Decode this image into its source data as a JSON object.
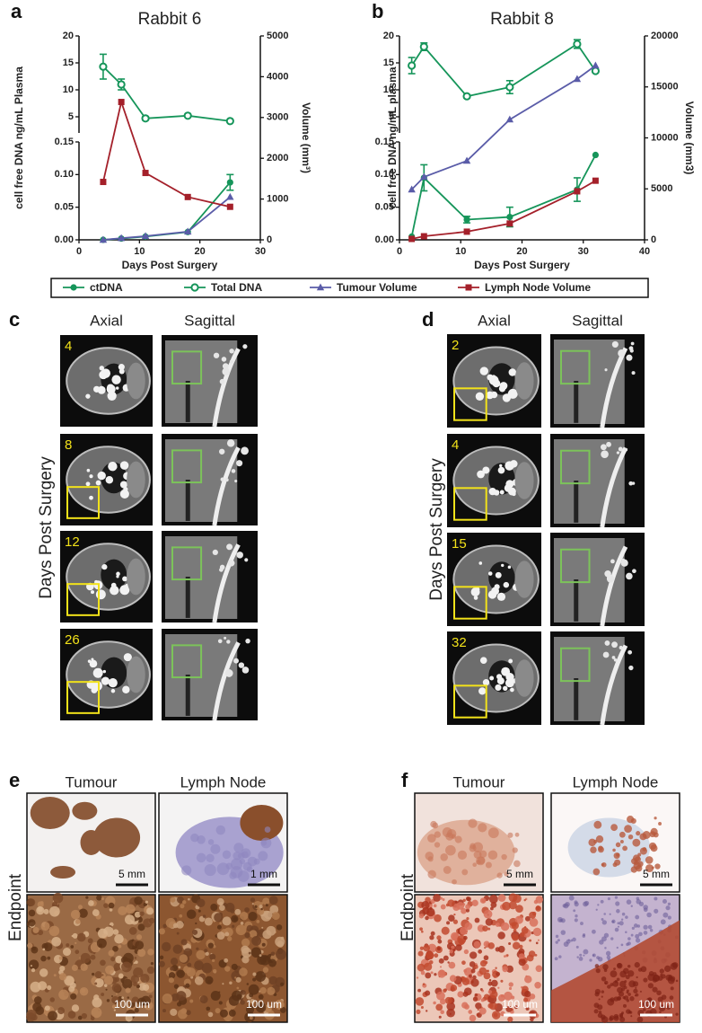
{
  "chart_data": [
    {
      "type": "line",
      "label": "a",
      "title": "Rabbit 6",
      "xlabel": "Days Post Surgery",
      "ylabel": "cell free DNA ng/mL Plasma",
      "y2label": "Volume (mm³)",
      "xlim": [
        0,
        30
      ],
      "xticks": [
        0,
        10,
        20,
        30
      ],
      "ylim": [
        [
          0,
          0.15
        ],
        [
          2,
          20
        ]
      ],
      "yticks": [
        {
          "value": 0,
          "label": "0.00"
        },
        0.05,
        {
          "value": 0.1,
          "label": "0.10"
        },
        0.15,
        5,
        10,
        15,
        20
      ],
      "y2lim": [
        0,
        5000
      ],
      "y2ticks": [
        0,
        1000,
        2000,
        3000,
        4000,
        5000
      ],
      "series": [
        {
          "name": "ctDNA",
          "color": "#16955a",
          "marker": "circle",
          "x": [
            4,
            7,
            11,
            18,
            25
          ],
          "values": [
            0.0,
            0.002,
            0.005,
            0.012,
            0.088
          ],
          "errors": [
            0,
            0,
            0,
            0,
            0.012
          ]
        },
        {
          "name": "Total DNA",
          "color": "#16955a",
          "marker": "circle-open",
          "x": [
            4,
            7,
            11,
            18,
            25
          ],
          "values": [
            14.3,
            11.0,
            4.7,
            5.2,
            4.2
          ],
          "errors": [
            2.3,
            1.0,
            0.3,
            0,
            0
          ]
        },
        {
          "name": "Tumour Volume",
          "color": "#5a5ca8",
          "marker": "triangle",
          "axis": "y2",
          "x": [
            4,
            7,
            11,
            18,
            25
          ],
          "values": [
            0,
            40,
            90,
            200,
            1050
          ]
        },
        {
          "name": "Lymph Node Volume",
          "color": "#a4202a",
          "marker": "square",
          "axis": "y2",
          "x": [
            4,
            7,
            11,
            18,
            25
          ],
          "values": [
            1420,
            3380,
            1640,
            1050,
            810
          ]
        }
      ]
    },
    {
      "type": "line",
      "label": "b",
      "title": "Rabbit 8",
      "xlabel": "Days Post Surgery",
      "ylabel": "cell free DNA ng/mL plasma",
      "y2label": "Volume (mm3)",
      "xlim": [
        0,
        40
      ],
      "xticks": [
        0,
        10,
        20,
        30,
        40
      ],
      "ylim": [
        [
          0,
          0.15
        ],
        [
          2,
          20
        ]
      ],
      "yticks": [
        {
          "value": 0,
          "label": "0.00"
        },
        0.05,
        {
          "value": 0.1,
          "label": "0.10"
        },
        0.15,
        5,
        10,
        15,
        20
      ],
      "y2lim": [
        0,
        20000
      ],
      "y2ticks": [
        0,
        5000,
        10000,
        15000,
        20000
      ],
      "series": [
        {
          "color": "#16955a",
          "marker": "circle",
          "x": [
            2,
            4,
            11,
            18,
            29,
            32
          ],
          "values": [
            0.005,
            0.095,
            0.031,
            0.035,
            0.077,
            0.13
          ],
          "errors": [
            0,
            0.02,
            0.005,
            0.015,
            0.018,
            0
          ]
        },
        {
          "color": "#16955a",
          "marker": "circle-open",
          "x": [
            2,
            4,
            11,
            18,
            29,
            32
          ],
          "values": [
            14.5,
            18.0,
            8.8,
            10.5,
            18.5,
            13.5
          ],
          "errors": [
            1.5,
            0.7,
            0.3,
            1.2,
            0.8,
            0
          ]
        },
        {
          "color": "#5a5ca8",
          "marker": "triangle",
          "axis": "y2",
          "x": [
            2,
            4,
            11,
            18,
            29,
            32
          ],
          "values": [
            4930,
            6170,
            7750,
            11800,
            15770,
            17090
          ]
        },
        {
          "color": "#a4202a",
          "marker": "square",
          "axis": "y2",
          "x": [
            2,
            4,
            11,
            18,
            29,
            32
          ],
          "values": [
            90,
            350,
            800,
            1600,
            4760,
            5800
          ]
        }
      ]
    }
  ],
  "figure": {
    "panels": [
      {
        "letter": "c",
        "columns": [
          "Axial",
          "Sagittal"
        ],
        "row_label": "Days Post Surgery",
        "days": [
          "4",
          "8",
          "12",
          "26"
        ]
      },
      {
        "letter": "d",
        "columns": [
          "Axial",
          "Sagittal"
        ],
        "row_label": "Days Post Surgery",
        "days": [
          "2",
          "4",
          "15",
          "32"
        ]
      },
      {
        "letter": "e",
        "columns": [
          "Tumour",
          "Lymph Node"
        ],
        "row_label": "Endpoint",
        "scale_bars": [
          "5 mm",
          "1 mm",
          "100 um",
          "100 um"
        ]
      },
      {
        "letter": "f",
        "columns": [
          "Tumour",
          "Lymph Node"
        ],
        "row_label": "Endpoint",
        "scale_bars": [
          "5 mm",
          "5 mm",
          "100 um",
          "100 um"
        ]
      }
    ]
  }
}
